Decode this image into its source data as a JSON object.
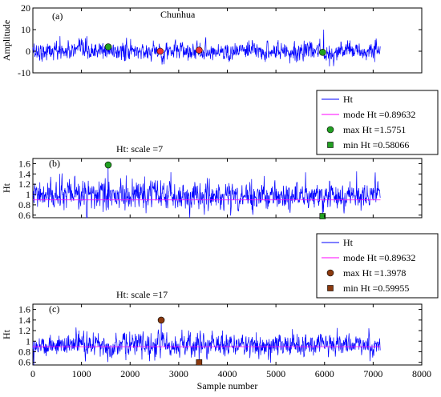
{
  "chart_data": [
    {
      "id": "a",
      "type": "line",
      "panel_label": "(a)",
      "title": "Chunhua",
      "xlabel": "",
      "ylabel": "Amplitude",
      "xlim": [
        0,
        8000
      ],
      "ylim": [
        -10,
        20
      ],
      "yticks": [
        -10,
        0,
        10,
        20
      ],
      "grid": false,
      "series": [
        {
          "key": "signal",
          "color": "#0000ff",
          "n": 7150,
          "center": 0,
          "spread": 2.2,
          "spikes": [
            [
              560,
              7
            ],
            [
              1080,
              6
            ],
            [
              2700,
              -6
            ],
            [
              3380,
              5
            ],
            [
              5980,
              10
            ],
            [
              6100,
              -7
            ],
            [
              6520,
              5
            ],
            [
              7030,
              -5
            ]
          ]
        }
      ],
      "markers": [
        {
          "x": 1550,
          "y": 2,
          "shape": "circle",
          "color": "#22a022"
        },
        {
          "x": 2620,
          "y": 0,
          "shape": "circle",
          "color": "#ee3333"
        },
        {
          "x": 3420,
          "y": 0.5,
          "shape": "circle",
          "color": "#ee3333"
        },
        {
          "x": 5960,
          "y": -0.5,
          "shape": "circle",
          "color": "#22a022"
        }
      ]
    },
    {
      "id": "b",
      "type": "line",
      "panel_label": "(b)",
      "title": "Ht: scale =7",
      "xlabel": "",
      "ylabel": "Ht",
      "xlim": [
        0,
        8000
      ],
      "ylim": [
        0.55,
        1.7
      ],
      "yticks": [
        0.6,
        0.8,
        1,
        1.2,
        1.4,
        1.6
      ],
      "grid": false,
      "series": [
        {
          "key": "ht",
          "name": "Ht",
          "color": "#0000ff",
          "n": 7150,
          "center": 0.97,
          "spread": 0.14,
          "spikes": [
            [
              1550,
              1.57
            ],
            [
              5960,
              0.58
            ],
            [
              6660,
              1.45
            ],
            [
              550,
              1.4
            ],
            [
              2300,
              1.35
            ],
            [
              4500,
              1.3
            ]
          ]
        }
      ],
      "mode_line": {
        "value": 0.89632,
        "color": "#ff00ff"
      },
      "markers": [
        {
          "x": 1550,
          "y": 1.5751,
          "shape": "circle",
          "color": "#22a022"
        },
        {
          "x": 5960,
          "y": 0.58066,
          "shape": "square",
          "color": "#22a022"
        }
      ],
      "legend": {
        "position": "top-right",
        "entries": [
          "Ht",
          "mode Ht =0.89632",
          "max Ht =1.5751",
          "min Ht =0.58066"
        ],
        "colors": [
          "#0000ff",
          "#ff00ff",
          "#22a022",
          "#22a022"
        ]
      }
    },
    {
      "id": "c",
      "type": "line",
      "panel_label": "(c)",
      "title": "Ht: scale =17",
      "xlabel": "Sample number",
      "ylabel": "Ht",
      "xlim": [
        0,
        8000
      ],
      "ylim": [
        0.55,
        1.7
      ],
      "xticks": [
        0,
        1000,
        2000,
        3000,
        4000,
        5000,
        6000,
        7000,
        8000
      ],
      "yticks": [
        0.6,
        0.8,
        1,
        1.2,
        1.4,
        1.6
      ],
      "grid": false,
      "series": [
        {
          "key": "ht",
          "name": "Ht",
          "color": "#0000ff",
          "n": 7150,
          "center": 0.93,
          "spread": 0.11,
          "spikes": [
            [
              2640,
              1.4
            ],
            [
              3420,
              0.6
            ],
            [
              6260,
              1.25
            ],
            [
              3900,
              1.2
            ],
            [
              950,
              1.2
            ]
          ]
        }
      ],
      "mode_line": {
        "value": 0.89632,
        "color": "#ff00ff"
      },
      "markers": [
        {
          "x": 2640,
          "y": 1.3978,
          "shape": "circle",
          "color": "#8b3a0f"
        },
        {
          "x": 3420,
          "y": 0.59955,
          "shape": "square",
          "color": "#8b3a0f"
        }
      ],
      "legend": {
        "position": "top-right",
        "entries": [
          "Ht",
          "mode Ht =0.89632",
          "max Ht =1.3978",
          "min Ht =0.59955"
        ],
        "colors": [
          "#0000ff",
          "#ff00ff",
          "#8b3a0f",
          "#8b3a0f"
        ]
      }
    }
  ]
}
